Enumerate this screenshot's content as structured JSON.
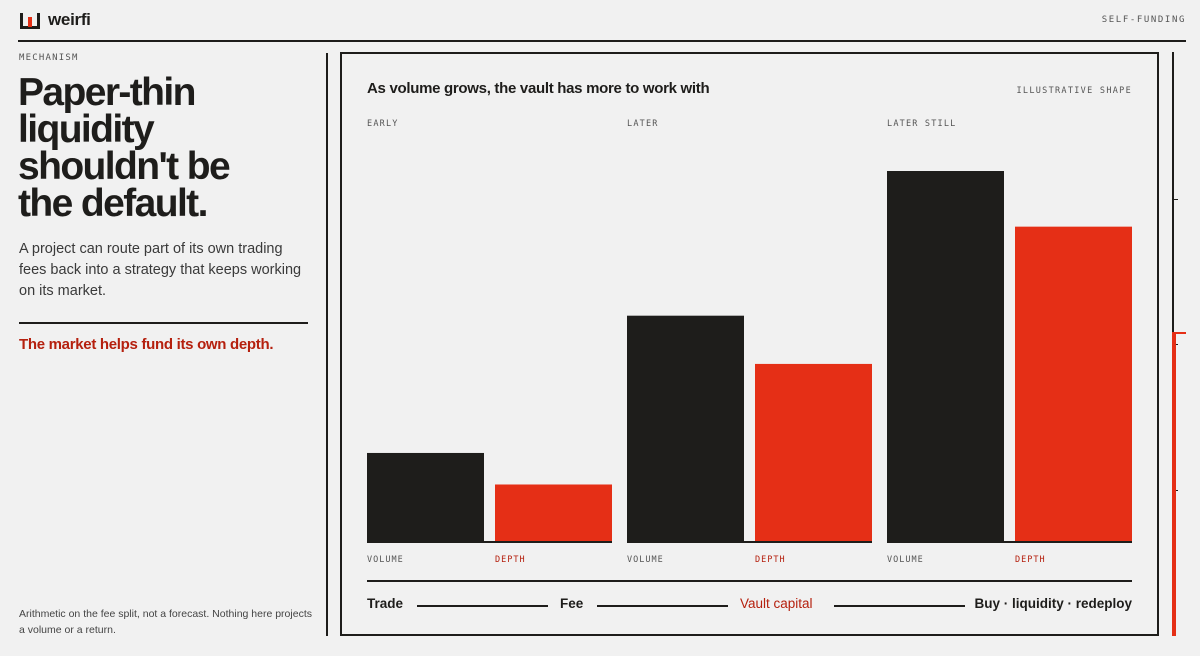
{
  "header": {
    "brand": "weirfi",
    "tag": "SELF-FUNDING"
  },
  "left": {
    "eyebrow": "MECHANISM",
    "headline_lines": [
      "Paper-thin",
      "liquidity",
      "shouldn't be",
      "the default."
    ],
    "body": "A project can route part of its own trading fees back into a strategy that keeps working on its market.",
    "tagline": "The market helps fund its own depth.",
    "footnote": "Arithmetic on the fee split, not a forecast. Nothing here projects a volume or a return."
  },
  "panel": {
    "title": "As volume grows, the vault has more to work with",
    "tag": "ILLUSTRATIVE SHAPE",
    "flow": [
      "Trade",
      "Fee",
      "Vault capital",
      "Buy · liquidity · redeploy"
    ]
  },
  "colors": {
    "ink": "#1e1d1b",
    "accent": "#e52f16",
    "accent_text": "#b5200e",
    "background": "#f1f1f1"
  },
  "gauge": {
    "fill_fraction": 0.52
  },
  "chart_data": {
    "type": "bar",
    "categories": [
      "EARLY",
      "LATER",
      "LATER STILL"
    ],
    "series": [
      {
        "name": "VOLUME",
        "values": [
          24,
          61,
          100
        ]
      },
      {
        "name": "DEPTH",
        "values": [
          15.5,
          48,
          85
        ]
      }
    ],
    "ylim": [
      0,
      100
    ],
    "grid": false,
    "axis_values_shown": false
  }
}
